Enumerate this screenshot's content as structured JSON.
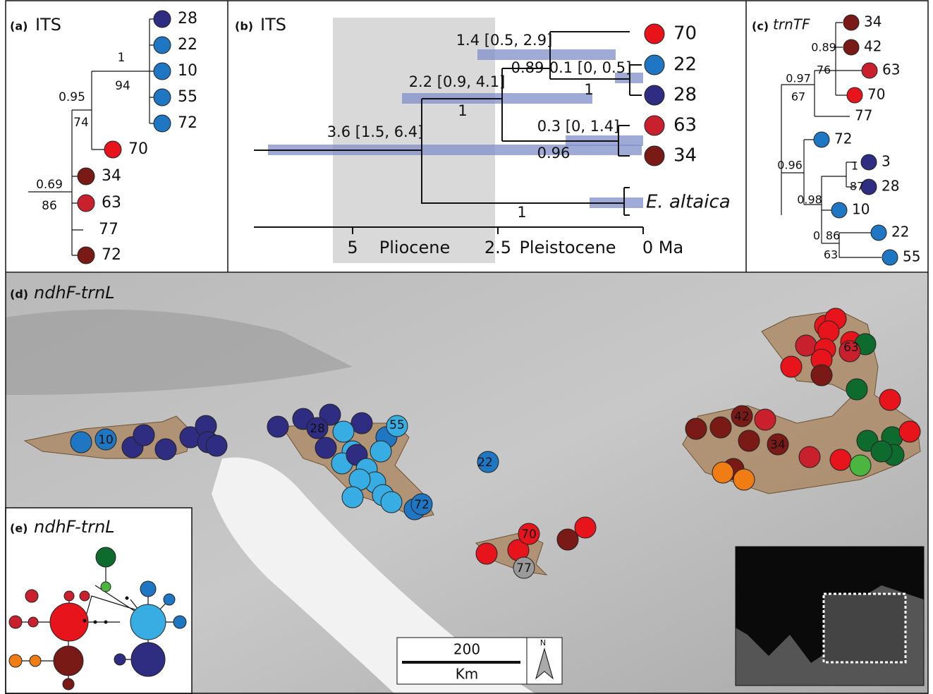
{
  "panel_a": {
    "label": "(a)",
    "title": "ITS",
    "tips": [
      "28",
      "22",
      "10",
      "55",
      "72",
      "70",
      "34",
      "63",
      "77",
      "72"
    ],
    "supports": [
      "1",
      "94",
      "0.95",
      "74",
      "0.69",
      "86"
    ]
  },
  "panel_b": {
    "label": "(b)",
    "title": "ITS",
    "tips": [
      "70",
      "22",
      "28",
      "63",
      "34",
      "E. altaica"
    ],
    "node_labels": [
      "1.4 [0.5, 2.9]",
      "0.89",
      "0.1 [0, 0.5]",
      "1",
      "2.2 [0.9, 4.1]",
      "1",
      "3.6 [1.5, 6.4]",
      "0.3 [0, 1.4]",
      "0.96",
      "1"
    ],
    "axis": [
      "5",
      "Pliocene",
      "2.5",
      "Pleistocene",
      "0 Ma"
    ]
  },
  "panel_c": {
    "label": "(c)",
    "title": "trnTF",
    "tips": [
      "34",
      "42",
      "63",
      "70",
      "77",
      "72",
      "3",
      "28",
      "10",
      "22",
      "55"
    ],
    "supports": [
      "0.89",
      "76",
      "0.97",
      "67",
      "0.96",
      "1",
      "87",
      "0.98",
      "0",
      "86",
      "63"
    ]
  },
  "panel_d": {
    "label": "(d)",
    "title": "ndhF-trnL",
    "site_labels": [
      "10",
      "28",
      "55",
      "22",
      "72",
      "70",
      "77",
      "63",
      "42",
      "34"
    ],
    "scale": {
      "distance": "200",
      "unit": "Km",
      "north": "N"
    }
  },
  "panel_e": {
    "label": "(e)",
    "title": "ndhF-trnL"
  }
}
